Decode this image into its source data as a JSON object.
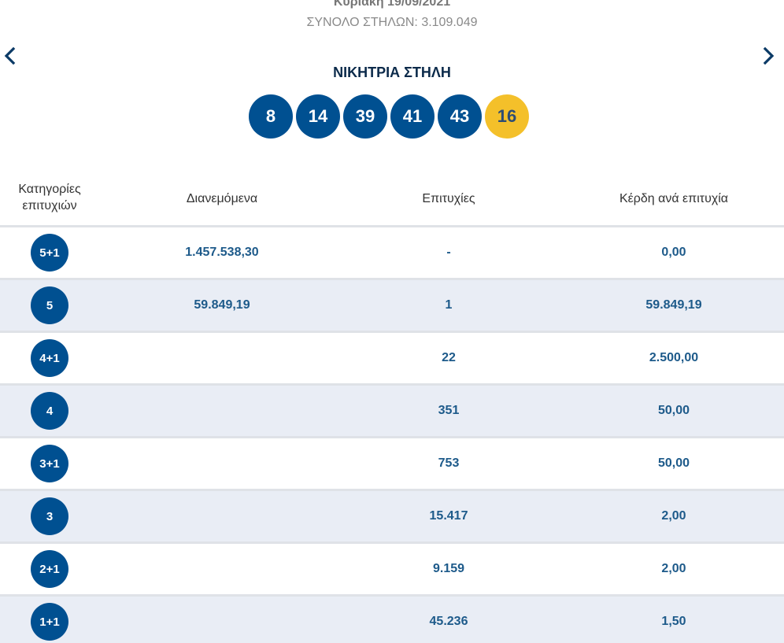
{
  "draw": {
    "date": "Κυριακή 19/09/2021",
    "total_columns": "ΣΥΝΟΛΟ ΣΤΗΛΩΝ: 3.109.049"
  },
  "navigation": {
    "prev_icon": "chevron-left-icon",
    "next_icon": "chevron-right-icon"
  },
  "winning": {
    "title": "ΝΙΚΗΤΡΙΑ ΣΤΗΛΗ",
    "numbers": [
      "8",
      "14",
      "39",
      "41",
      "43"
    ],
    "joker": "16"
  },
  "colors": {
    "primary_blue": "#005091",
    "joker_yellow": "#f4c02a",
    "row_alt": "#e9edf5",
    "value_text": "#1d5a8a"
  },
  "table": {
    "headers": {
      "category": "Κατηγορίες επιτυχιών",
      "distributed": "Διανεμόμενα",
      "winners": "Επιτυχίες",
      "prize": "Κέρδη ανά επιτυχία"
    },
    "rows": [
      {
        "category": "5+1",
        "distributed": "1.457.538,30",
        "winners": "-",
        "prize": "0,00"
      },
      {
        "category": "5",
        "distributed": "59.849,19",
        "winners": "1",
        "prize": "59.849,19"
      },
      {
        "category": "4+1",
        "distributed": "",
        "winners": "22",
        "prize": "2.500,00"
      },
      {
        "category": "4",
        "distributed": "",
        "winners": "351",
        "prize": "50,00"
      },
      {
        "category": "3+1",
        "distributed": "",
        "winners": "753",
        "prize": "50,00"
      },
      {
        "category": "3",
        "distributed": "",
        "winners": "15.417",
        "prize": "2,00"
      },
      {
        "category": "2+1",
        "distributed": "",
        "winners": "9.159",
        "prize": "2,00"
      },
      {
        "category": "1+1",
        "distributed": "",
        "winners": "45.236",
        "prize": "1,50"
      }
    ]
  }
}
